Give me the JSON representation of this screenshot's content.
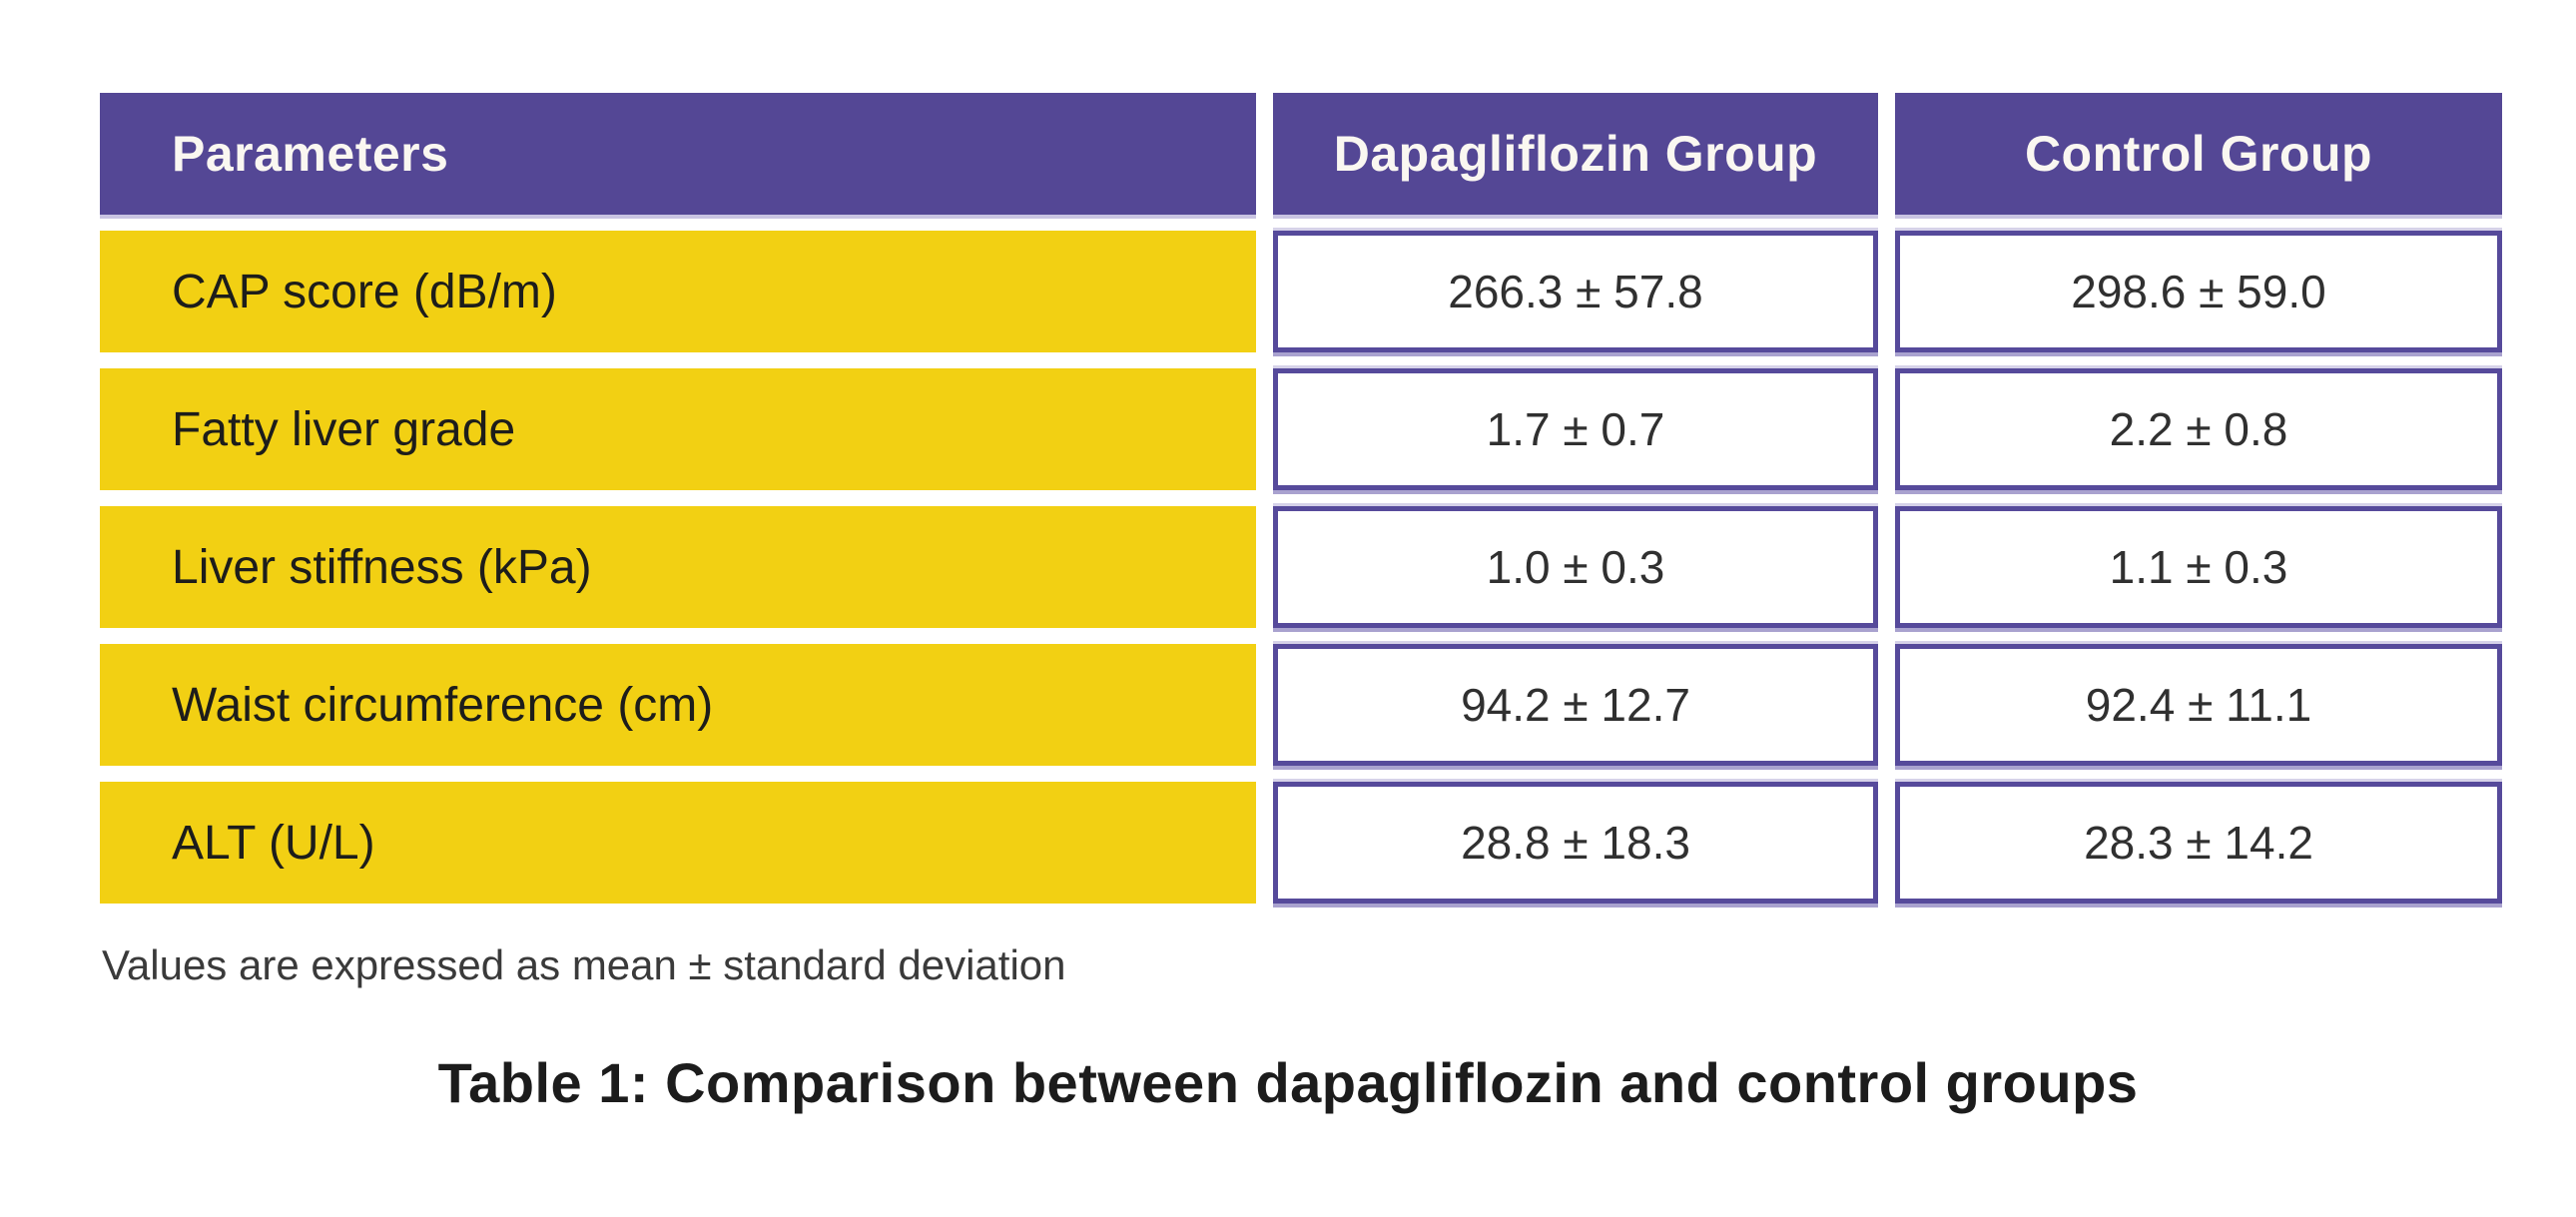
{
  "table": {
    "headers": [
      "Parameters",
      "Dapagliflozin Group",
      "Control Group"
    ],
    "rows": [
      {
        "label": "CAP score (dB/m)",
        "dapagliflozin": "266.3 ± 57.8",
        "control": "298.6 ± 59.0"
      },
      {
        "label": "Fatty liver grade",
        "dapagliflozin": "1.7 ± 0.7",
        "control": "2.2 ± 0.8"
      },
      {
        "label": "Liver stiffness (kPa)",
        "dapagliflozin": "1.0 ± 0.3",
        "control": "1.1 ± 0.3"
      },
      {
        "label": "Waist circumference (cm)",
        "dapagliflozin": "94.2 ± 12.7",
        "control": "92.4 ± 11.1"
      },
      {
        "label": "ALT (U/L)",
        "dapagliflozin": "28.8 ± 18.3",
        "control": "28.3 ± 14.2"
      }
    ],
    "footnote": "Values are expressed as mean ± standard deviation",
    "caption": "Table 1: Comparison between dapagliflozin and control groups"
  },
  "colors": {
    "header_purple": "#544795",
    "row_yellow": "#f2d013",
    "cell_border_purple": "#564a9b",
    "accent_lavender": "#c9c4e2",
    "header_text": "#faf7f1",
    "body_text": "#1d1d1b"
  }
}
